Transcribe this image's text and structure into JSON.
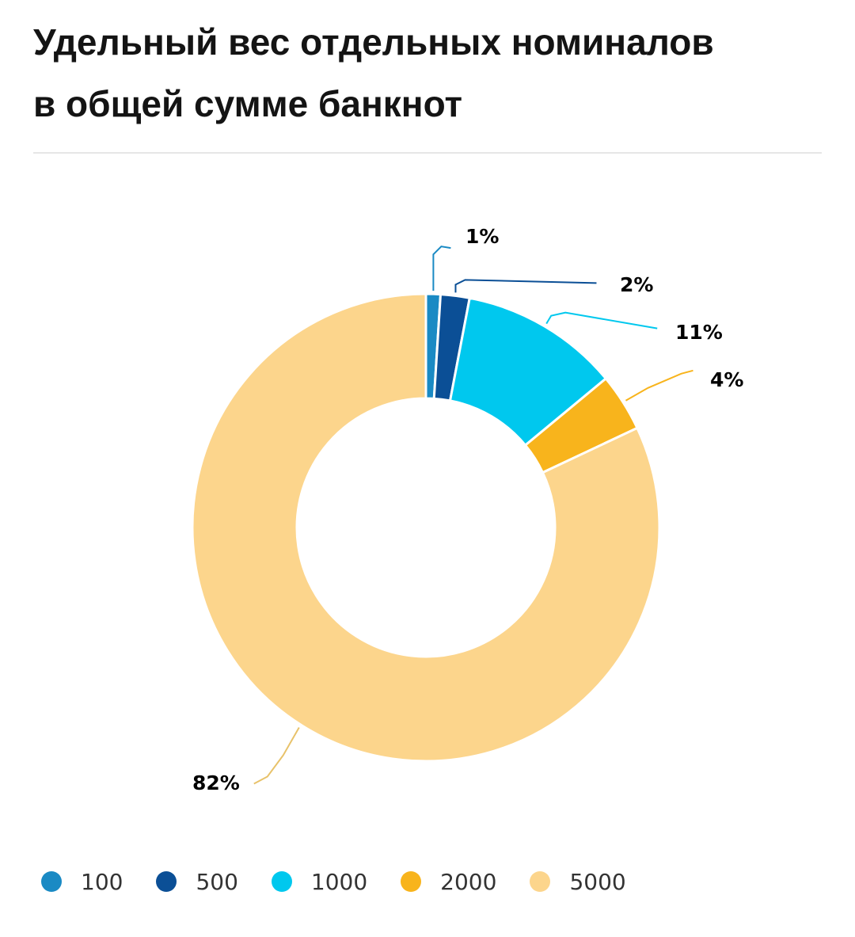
{
  "title_line1": "Удельный вес отдельных номиналов",
  "title_line2": "в общей сумме банкнот",
  "chart_data": {
    "type": "pie",
    "style": "donut",
    "categories": [
      "100",
      "500",
      "1000",
      "2000",
      "5000"
    ],
    "values": [
      1,
      2,
      11,
      4,
      82
    ],
    "labels": [
      "1%",
      "2%",
      "11%",
      "4%",
      "82%"
    ],
    "colors": [
      "#1a8ac4",
      "#0b4f96",
      "#00c8ee",
      "#f8b41c",
      "#fcd58c"
    ],
    "legend_position": "bottom-left"
  }
}
